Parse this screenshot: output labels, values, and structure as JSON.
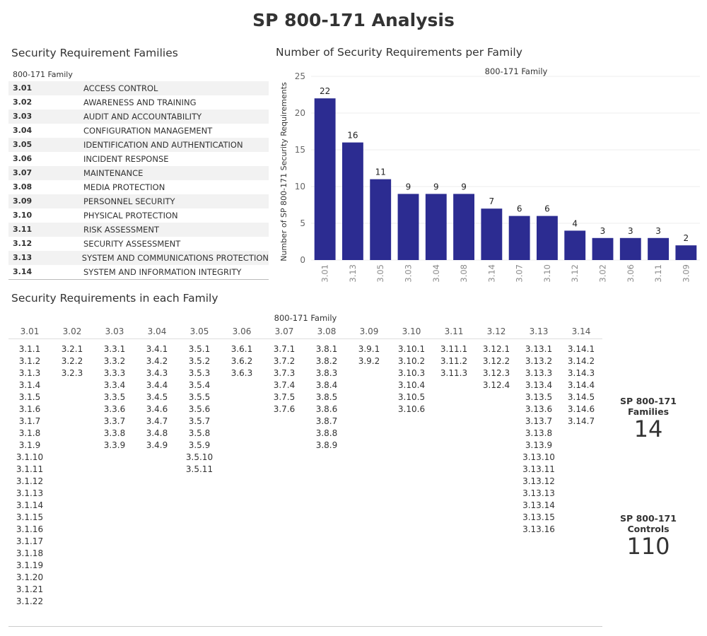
{
  "title": "SP 800-171 Analysis",
  "families_panel": {
    "title": "Security Requirement Families",
    "column_header": "800-171 Family",
    "rows": [
      {
        "code": "3.01",
        "name": "ACCESS CONTROL"
      },
      {
        "code": "3.02",
        "name": "AWARENESS AND TRAINING"
      },
      {
        "code": "3.03",
        "name": "AUDIT AND ACCOUNTABILITY"
      },
      {
        "code": "3.04",
        "name": "CONFIGURATION MANAGEMENT"
      },
      {
        "code": "3.05",
        "name": "IDENTIFICATION AND AUTHENTICATION"
      },
      {
        "code": "3.06",
        "name": "INCIDENT RESPONSE"
      },
      {
        "code": "3.07",
        "name": "MAINTENANCE"
      },
      {
        "code": "3.08",
        "name": "MEDIA PROTECTION"
      },
      {
        "code": "3.09",
        "name": "PERSONNEL SECURITY"
      },
      {
        "code": "3.10",
        "name": "PHYSICAL PROTECTION"
      },
      {
        "code": "3.11",
        "name": "RISK ASSESSMENT"
      },
      {
        "code": "3.12",
        "name": "SECURITY ASSESSMENT"
      },
      {
        "code": "3.13",
        "name": "SYSTEM AND COMMUNICATIONS PROTECTION"
      },
      {
        "code": "3.14",
        "name": "SYSTEM AND INFORMATION INTEGRITY"
      }
    ]
  },
  "chart_panel": {
    "title": "Number of Security Requirements per Family"
  },
  "chart_data": {
    "type": "bar",
    "title": "800-171 Family",
    "ylabel": "Number of SP 800-171 Security Requirements",
    "xlabel": "",
    "categories": [
      "3.01",
      "3.13",
      "3.05",
      "3.03",
      "3.04",
      "3.08",
      "3.14",
      "3.07",
      "3.10",
      "3.12",
      "3.02",
      "3.06",
      "3.11",
      "3.09"
    ],
    "values": [
      22,
      16,
      11,
      9,
      9,
      9,
      7,
      6,
      6,
      4,
      3,
      3,
      3,
      2
    ],
    "ylim": [
      0,
      25
    ],
    "yticks": [
      0,
      5,
      10,
      15,
      20,
      25
    ],
    "bar_color": "#2c2c91",
    "grid": true
  },
  "requirements_panel": {
    "title": "Security Requirements in each Family",
    "column_header": "800-171 Family",
    "columns": [
      {
        "family": "3.01",
        "items": [
          "3.1.1",
          "3.1.2",
          "3.1.3",
          "3.1.4",
          "3.1.5",
          "3.1.6",
          "3.1.7",
          "3.1.8",
          "3.1.9",
          "3.1.10",
          "3.1.11",
          "3.1.12",
          "3.1.13",
          "3.1.14",
          "3.1.15",
          "3.1.16",
          "3.1.17",
          "3.1.18",
          "3.1.19",
          "3.1.20",
          "3.1.21",
          "3.1.22"
        ]
      },
      {
        "family": "3.02",
        "items": [
          "3.2.1",
          "3.2.2",
          "3.2.3"
        ]
      },
      {
        "family": "3.03",
        "items": [
          "3.3.1",
          "3.3.2",
          "3.3.3",
          "3.3.4",
          "3.3.5",
          "3.3.6",
          "3.3.7",
          "3.3.8",
          "3.3.9"
        ]
      },
      {
        "family": "3.04",
        "items": [
          "3.4.1",
          "3.4.2",
          "3.4.3",
          "3.4.4",
          "3.4.5",
          "3.4.6",
          "3.4.7",
          "3.4.8",
          "3.4.9"
        ]
      },
      {
        "family": "3.05",
        "items": [
          "3.5.1",
          "3.5.2",
          "3.5.3",
          "3.5.4",
          "3.5.5",
          "3.5.6",
          "3.5.7",
          "3.5.8",
          "3.5.9",
          "3.5.10",
          "3.5.11"
        ]
      },
      {
        "family": "3.06",
        "items": [
          "3.6.1",
          "3.6.2",
          "3.6.3"
        ]
      },
      {
        "family": "3.07",
        "items": [
          "3.7.1",
          "3.7.2",
          "3.7.3",
          "3.7.4",
          "3.7.5",
          "3.7.6"
        ]
      },
      {
        "family": "3.08",
        "items": [
          "3.8.1",
          "3.8.2",
          "3.8.3",
          "3.8.4",
          "3.8.5",
          "3.8.6",
          "3.8.7",
          "3.8.8",
          "3.8.9"
        ]
      },
      {
        "family": "3.09",
        "items": [
          "3.9.1",
          "3.9.2"
        ]
      },
      {
        "family": "3.10",
        "items": [
          "3.10.1",
          "3.10.2",
          "3.10.3",
          "3.10.4",
          "3.10.5",
          "3.10.6"
        ]
      },
      {
        "family": "3.11",
        "items": [
          "3.11.1",
          "3.11.2",
          "3.11.3"
        ]
      },
      {
        "family": "3.12",
        "items": [
          "3.12.1",
          "3.12.2",
          "3.12.3",
          "3.12.4"
        ]
      },
      {
        "family": "3.13",
        "items": [
          "3.13.1",
          "3.13.2",
          "3.13.3",
          "3.13.4",
          "3.13.5",
          "3.13.6",
          "3.13.7",
          "3.13.8",
          "3.13.9",
          "3.13.10",
          "3.13.11",
          "3.13.12",
          "3.13.13",
          "3.13.14",
          "3.13.15",
          "3.13.16"
        ]
      },
      {
        "family": "3.14",
        "items": [
          "3.14.1",
          "3.14.2",
          "3.14.3",
          "3.14.4",
          "3.14.5",
          "3.14.6",
          "3.14.7"
        ]
      }
    ]
  },
  "kpis": {
    "families_label": "SP 800-171 Families",
    "families_value": "14",
    "controls_label": "SP 800-171 Controls",
    "controls_value": "110"
  }
}
